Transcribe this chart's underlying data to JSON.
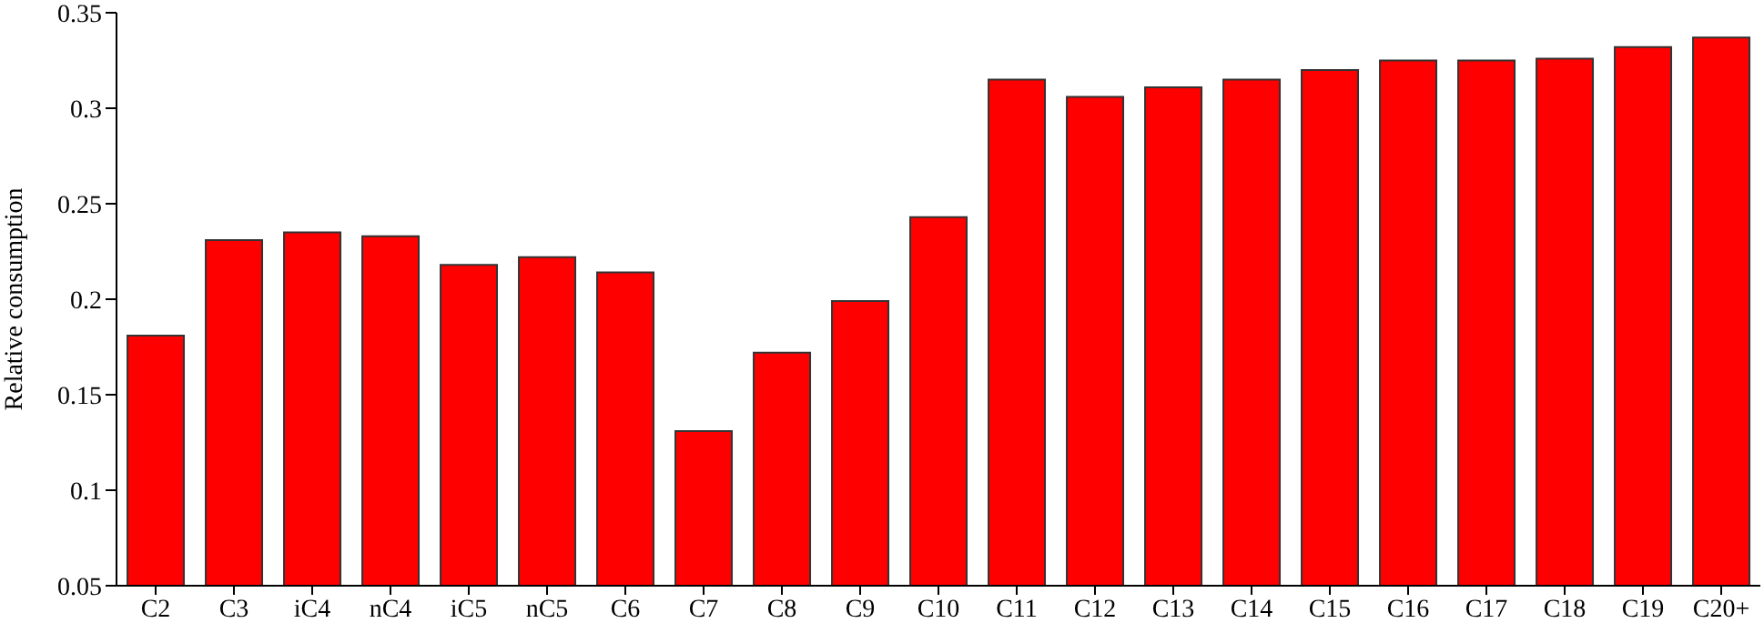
{
  "chart_data": {
    "type": "bar",
    "ylabel": "Relative consumption",
    "categories": [
      "C2",
      "C3",
      "iC4",
      "nC4",
      "iC5",
      "nC5",
      "C6",
      "C7",
      "C8",
      "C9",
      "C10",
      "C11",
      "C12",
      "C13",
      "C14",
      "C15",
      "C16",
      "C17",
      "C18",
      "C19",
      "C20+"
    ],
    "values": [
      0.181,
      0.231,
      0.235,
      0.233,
      0.218,
      0.222,
      0.214,
      0.131,
      0.172,
      0.199,
      0.243,
      0.315,
      0.306,
      0.311,
      0.315,
      0.32,
      0.325,
      0.325,
      0.326,
      0.332,
      0.337
    ],
    "color": "#ff0000",
    "ylim": [
      0.05,
      0.35
    ],
    "yticks": [
      0.05,
      0.1,
      0.15,
      0.2,
      0.25,
      0.3,
      0.35
    ],
    "grid": false,
    "legend": false
  }
}
